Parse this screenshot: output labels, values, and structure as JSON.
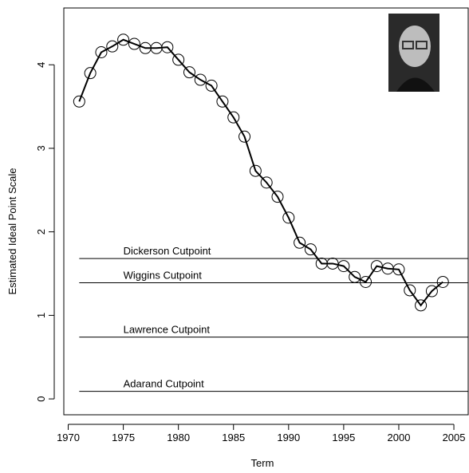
{
  "chart_data": {
    "type": "line",
    "x_label": "Term",
    "y_label": "Estimated Ideal Point Scale",
    "x": [
      1971,
      1972,
      1973,
      1974,
      1975,
      1976,
      1977,
      1978,
      1979,
      1980,
      1981,
      1982,
      1983,
      1984,
      1985,
      1986,
      1987,
      1988,
      1989,
      1990,
      1991,
      1992,
      1993,
      1994,
      1995,
      1996,
      1997,
      1998,
      1999,
      2000,
      2001,
      2002,
      2003,
      2004
    ],
    "values": [
      3.56,
      3.9,
      4.15,
      4.22,
      4.3,
      4.25,
      4.2,
      4.2,
      4.21,
      4.06,
      3.91,
      3.82,
      3.75,
      3.56,
      3.37,
      3.14,
      2.73,
      2.59,
      2.42,
      2.17,
      1.87,
      1.79,
      1.62,
      1.62,
      1.59,
      1.46,
      1.4,
      1.59,
      1.56,
      1.55,
      1.3,
      1.12,
      1.29,
      1.4
    ],
    "color": "#000000",
    "cutpoints": [
      {
        "label": "Dickerson Cutpoint",
        "value": 1.68
      },
      {
        "label": "Wiggins Cutpoint",
        "value": 1.39
      },
      {
        "label": "Lawrence Cutpoint",
        "value": 0.74
      },
      {
        "label": "Adarand Cutpoint",
        "value": 0.09
      }
    ],
    "xlim": [
      1969.6,
      2006.3
    ],
    "ylim": [
      -0.19,
      4.68
    ],
    "xticks": [
      1970,
      1975,
      1980,
      1985,
      1990,
      1995,
      2000,
      2005
    ],
    "yticks": [
      0,
      1,
      2,
      3,
      4
    ]
  }
}
